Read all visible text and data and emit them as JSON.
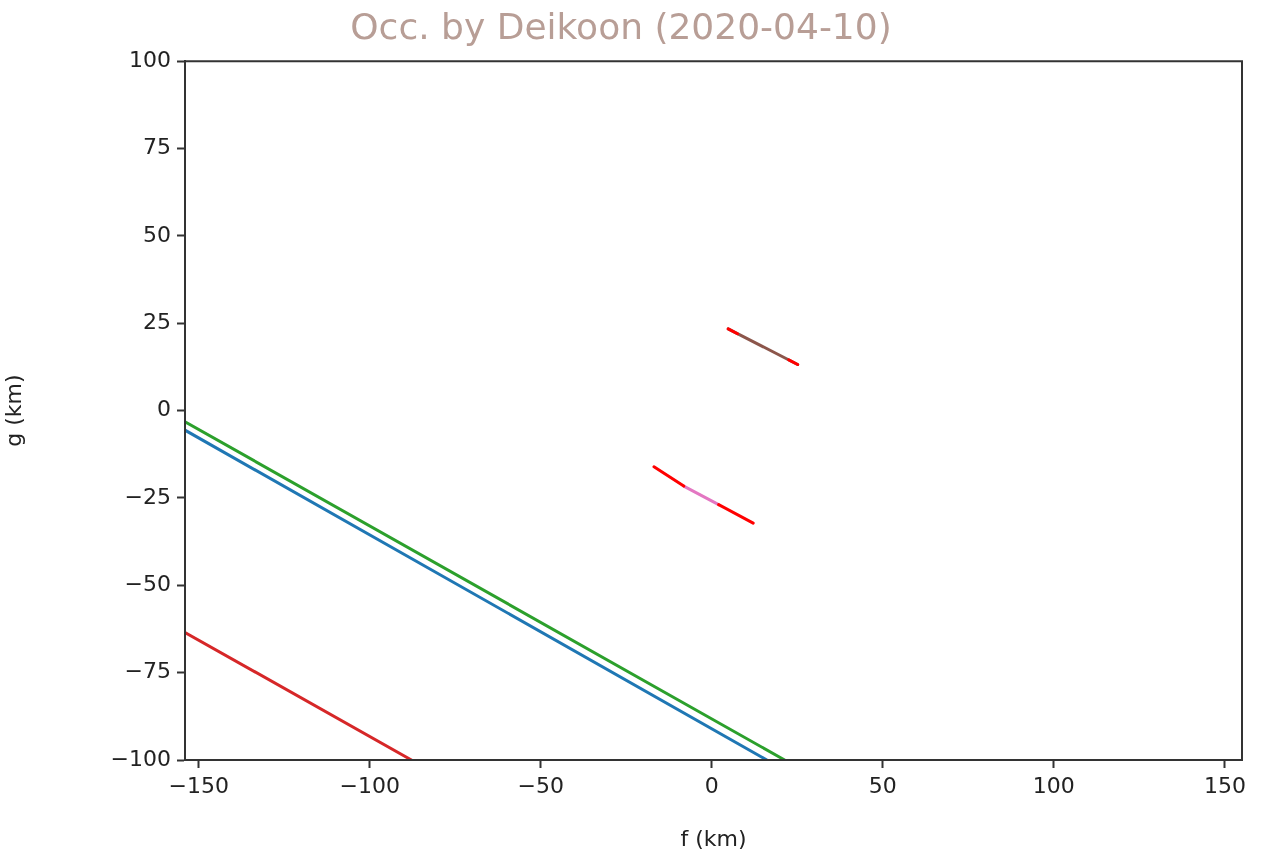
{
  "chart_data": {
    "type": "line",
    "title": "Occ. by Deikoon (2020-04-10)",
    "xlabel": "f (km)",
    "ylabel": "g (km)",
    "xlim": [
      -154,
      155
    ],
    "ylim": [
      -100,
      100
    ],
    "xticks": [
      {
        "value": -150,
        "label": "−150"
      },
      {
        "value": -100,
        "label": "−100"
      },
      {
        "value": -50,
        "label": "−50"
      },
      0,
      50,
      100,
      150
    ],
    "yticks": [
      {
        "value": -100,
        "label": "−100"
      },
      {
        "value": -75,
        "label": "−75"
      },
      {
        "value": -50,
        "label": "−50"
      },
      {
        "value": -25,
        "label": "−25"
      },
      0,
      25,
      50,
      75,
      100
    ],
    "grid": false,
    "legend": false,
    "marker": "none",
    "line_style": "solid",
    "series": [
      {
        "color": "#1f77b4",
        "x": [
          -154,
          16.1
        ],
        "values": [
          -5.6,
          -100
        ]
      },
      {
        "color": "#2ca02c",
        "x": [
          -154,
          21.3
        ],
        "values": [
          -3.2,
          -100
        ]
      },
      {
        "color": "#d62728",
        "x": [
          -154,
          -87.8
        ],
        "values": [
          -63.5,
          -100
        ]
      },
      {
        "color": "#8c564b",
        "x": [
          4.8,
          25.1
        ],
        "values": [
          23.4,
          13.2
        ]
      },
      {
        "color": "#e377c2",
        "x": [
          -8.2,
          2.0
        ],
        "values": [
          -21.6,
          -26.9
        ]
      },
      {
        "color": "#ff0000",
        "x": [
          4.8,
          7.5,
          15,
          22.5,
          25.1
        ],
        "values": [
          23.4,
          22.0,
          null,
          14.5,
          13.2
        ]
      },
      {
        "color": "#ff0000",
        "x": [
          -16.9,
          -8.2,
          -3,
          2.0,
          12.1
        ],
        "values": [
          -16.1,
          -21.6,
          null,
          -26.9,
          -32.2
        ]
      }
    ]
  }
}
